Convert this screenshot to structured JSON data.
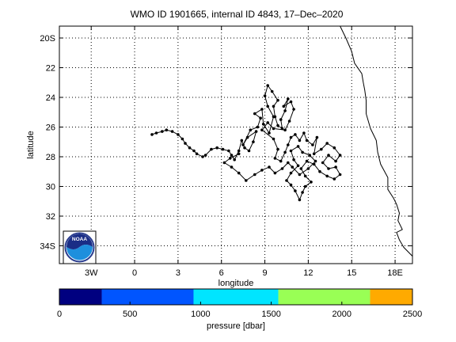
{
  "title": "WMO ID 1901665, internal ID 4843, 17–Dec–2020",
  "map": {
    "xlabel": "longitude",
    "ylabel": "latitude",
    "lon_range": [
      -5.2,
      19.2
    ],
    "lat_range": [
      -35.2,
      -19.2
    ],
    "lon_ticks": [
      "3W",
      "0",
      "3",
      "6",
      "9",
      "12",
      "15",
      "18E"
    ],
    "lon_tick_values": [
      -3,
      0,
      3,
      6,
      9,
      12,
      15,
      18
    ],
    "lat_ticks": [
      "20S",
      "22",
      "24",
      "26",
      "28",
      "30",
      "32",
      "34S"
    ],
    "lat_tick_values": [
      -20,
      -22,
      -24,
      -26,
      -28,
      -30,
      -32,
      -34
    ],
    "grid": "dotted",
    "coastline": [
      [
        14.2,
        -19.2
      ],
      [
        14.6,
        -20.0
      ],
      [
        15.0,
        -20.9
      ],
      [
        15.2,
        -21.7
      ],
      [
        15.7,
        -22.4
      ],
      [
        15.8,
        -23.0
      ],
      [
        15.9,
        -23.5
      ],
      [
        16.0,
        -24.2
      ],
      [
        16.0,
        -25.1
      ],
      [
        16.3,
        -26.1
      ],
      [
        16.7,
        -26.9
      ],
      [
        16.8,
        -27.7
      ],
      [
        17.0,
        -28.5
      ],
      [
        17.5,
        -29.4
      ],
      [
        17.5,
        -30.2
      ],
      [
        17.9,
        -30.8
      ],
      [
        18.1,
        -31.2
      ],
      [
        18.3,
        -31.8
      ],
      [
        18.2,
        -32.3
      ],
      [
        18.5,
        -32.9
      ],
      [
        18.1,
        -33.1
      ],
      [
        18.3,
        -33.6
      ],
      [
        18.6,
        -34.1
      ],
      [
        18.9,
        -34.4
      ],
      [
        19.2,
        -34.7
      ]
    ],
    "colors": {
      "track": "#000000",
      "coast": "#000000"
    }
  },
  "chart_data": {
    "type": "line",
    "series": [
      {
        "points": [
          [
            1.2,
            -26.5
          ],
          [
            1.5,
            -26.4
          ],
          [
            1.9,
            -26.3
          ],
          [
            2.2,
            -26.2
          ],
          [
            2.6,
            -26.3
          ],
          [
            3.0,
            -26.5
          ],
          [
            3.3,
            -26.8
          ],
          [
            3.5,
            -27.1
          ],
          [
            3.8,
            -27.4
          ],
          [
            4.1,
            -27.6
          ],
          [
            4.3,
            -27.8
          ],
          [
            4.7,
            -28.0
          ],
          [
            4.9,
            -27.9
          ],
          [
            5.3,
            -27.5
          ],
          [
            5.7,
            -27.4
          ],
          [
            6.1,
            -27.5
          ],
          [
            6.5,
            -27.6
          ],
          [
            6.7,
            -27.9
          ],
          [
            6.9,
            -28.2
          ],
          [
            7.2,
            -27.6
          ],
          [
            7.4,
            -26.9
          ],
          [
            7.6,
            -27.4
          ],
          [
            7.9,
            -27.6
          ],
          [
            8.2,
            -27.0
          ],
          [
            8.4,
            -26.3
          ],
          [
            7.8,
            -26.7
          ],
          [
            7.5,
            -27.2
          ],
          [
            8.0,
            -26.2
          ],
          [
            8.5,
            -26.0
          ],
          [
            8.7,
            -25.4
          ],
          [
            8.3,
            -25.1
          ],
          [
            8.8,
            -24.8
          ],
          [
            8.9,
            -25.8
          ],
          [
            9.3,
            -26.4
          ],
          [
            9.6,
            -25.3
          ],
          [
            9.2,
            -24.6
          ],
          [
            9.0,
            -23.9
          ],
          [
            9.2,
            -23.2
          ],
          [
            9.5,
            -23.6
          ],
          [
            9.9,
            -24.2
          ],
          [
            9.6,
            -24.6
          ],
          [
            9.7,
            -25.3
          ],
          [
            9.9,
            -25.9
          ],
          [
            10.2,
            -26.1
          ],
          [
            10.1,
            -25.5
          ],
          [
            10.4,
            -24.9
          ],
          [
            10.6,
            -24.1
          ],
          [
            10.3,
            -24.6
          ],
          [
            10.8,
            -24.3
          ],
          [
            11.0,
            -24.8
          ],
          [
            10.7,
            -25.6
          ],
          [
            10.4,
            -26.2
          ],
          [
            9.6,
            -26.1
          ],
          [
            9.2,
            -25.7
          ],
          [
            8.8,
            -26.2
          ],
          [
            9.6,
            -26.8
          ],
          [
            9.9,
            -27.5
          ],
          [
            9.7,
            -28.1
          ],
          [
            10.1,
            -28.3
          ],
          [
            10.4,
            -27.7
          ],
          [
            10.6,
            -27.2
          ],
          [
            10.8,
            -26.7
          ],
          [
            11.1,
            -26.5
          ],
          [
            11.4,
            -26.9
          ],
          [
            11.7,
            -26.4
          ],
          [
            11.9,
            -26.9
          ],
          [
            12.3,
            -27.2
          ],
          [
            12.6,
            -26.7
          ],
          [
            12.4,
            -27.8
          ],
          [
            12.9,
            -27.5
          ],
          [
            13.3,
            -27.1
          ],
          [
            13.8,
            -27.4
          ],
          [
            14.2,
            -27.9
          ],
          [
            13.9,
            -28.3
          ],
          [
            13.4,
            -27.9
          ],
          [
            13.0,
            -28.4
          ],
          [
            13.4,
            -28.8
          ],
          [
            13.9,
            -28.7
          ],
          [
            14.2,
            -29.2
          ],
          [
            13.8,
            -29.5
          ],
          [
            13.3,
            -29.3
          ],
          [
            12.8,
            -29.0
          ],
          [
            12.4,
            -28.5
          ],
          [
            11.9,
            -28.3
          ],
          [
            11.5,
            -28.8
          ],
          [
            11.8,
            -29.3
          ],
          [
            12.2,
            -29.7
          ],
          [
            11.8,
            -30.0
          ],
          [
            11.6,
            -30.4
          ],
          [
            11.4,
            -30.9
          ],
          [
            11.1,
            -30.3
          ],
          [
            10.8,
            -29.9
          ],
          [
            10.5,
            -29.6
          ],
          [
            10.8,
            -29.1
          ],
          [
            11.3,
            -28.6
          ],
          [
            11.0,
            -28.2
          ],
          [
            10.8,
            -27.6
          ],
          [
            11.3,
            -27.3
          ],
          [
            11.6,
            -27.7
          ],
          [
            12.1,
            -27.9
          ],
          [
            12.5,
            -28.3
          ],
          [
            12.0,
            -28.8
          ],
          [
            11.4,
            -29.2
          ],
          [
            10.9,
            -28.7
          ],
          [
            10.6,
            -28.4
          ],
          [
            10.2,
            -28.8
          ],
          [
            9.7,
            -29.1
          ],
          [
            9.3,
            -28.7
          ],
          [
            8.8,
            -28.9
          ],
          [
            8.3,
            -29.2
          ],
          [
            7.7,
            -29.6
          ],
          [
            7.2,
            -29.1
          ],
          [
            6.7,
            -28.7
          ],
          [
            6.2,
            -28.4
          ],
          [
            6.6,
            -28.1
          ],
          [
            7.2,
            -27.8
          ]
        ]
      }
    ]
  },
  "colorbar": {
    "label": "pressure [dbar]",
    "range": [
      0,
      2500
    ],
    "ticks": [
      "0",
      "500",
      "1000",
      "1500",
      "2000",
      "2500"
    ],
    "tick_values": [
      0,
      500,
      1000,
      1500,
      2000,
      2500
    ],
    "segments": [
      {
        "from": 0,
        "to": 300,
        "color": "#000080"
      },
      {
        "from": 300,
        "to": 950,
        "color": "#0055ff"
      },
      {
        "from": 950,
        "to": 1550,
        "color": "#00e5ff"
      },
      {
        "from": 1550,
        "to": 2200,
        "color": "#99ff55"
      },
      {
        "from": 2200,
        "to": 2500,
        "color": "#ffaa00"
      }
    ]
  },
  "logo": {
    "text": "NOAA",
    "icon": "noaa-logo-icon"
  }
}
